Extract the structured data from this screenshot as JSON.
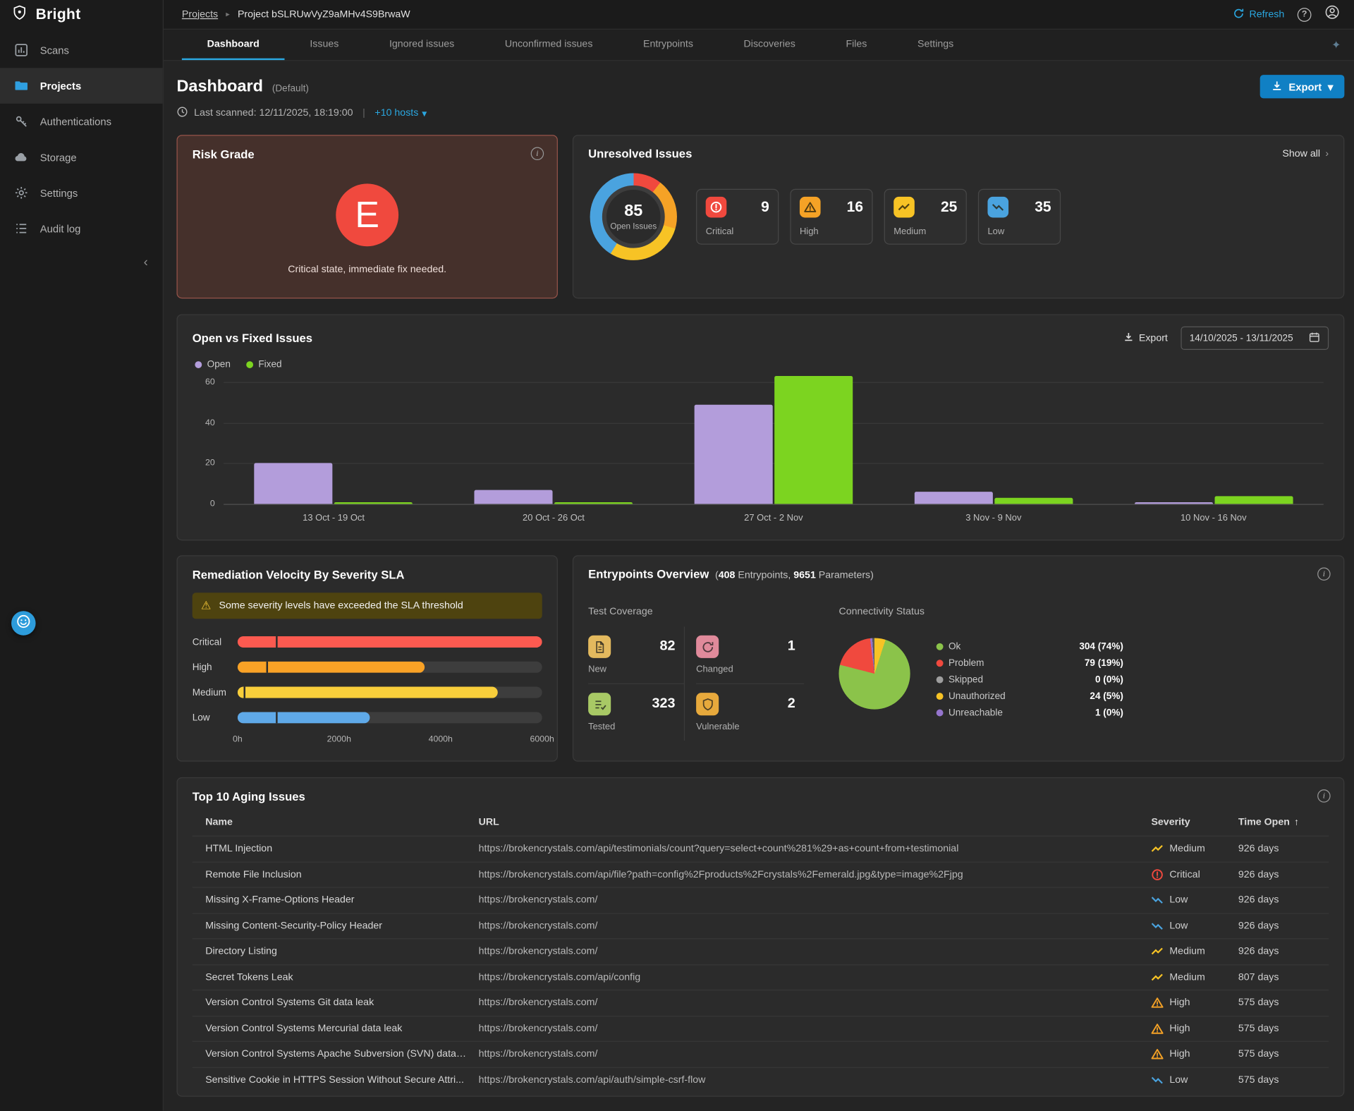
{
  "app": {
    "logo_text": "Bright"
  },
  "sidebar": {
    "items": [
      {
        "label": "Scans"
      },
      {
        "label": "Projects"
      },
      {
        "label": "Authentications"
      },
      {
        "label": "Storage"
      },
      {
        "label": "Settings"
      },
      {
        "label": "Audit log"
      }
    ]
  },
  "topbar": {
    "breadcrumb_root": "Projects",
    "breadcrumb_current": "Project bSLRUwVyZ9aMHv4S9BrwaW",
    "refresh_label": "Refresh"
  },
  "tabs": {
    "items": [
      "Dashboard",
      "Issues",
      "Ignored issues",
      "Unconfirmed issues",
      "Entrypoints",
      "Discoveries",
      "Files",
      "Settings"
    ],
    "active": "Dashboard"
  },
  "page": {
    "title": "Dashboard",
    "title_badge": "(Default)",
    "last_scanned": "Last scanned: 12/11/2025, 18:19:00",
    "separator": "|",
    "hosts_toggle": "+10 hosts",
    "export_label": "Export"
  },
  "severity_colors": {
    "Critical": "#f0493e",
    "High": "#f5a226",
    "Medium": "#f7c325",
    "Low": "#4aa3df"
  },
  "risk_grade": {
    "title": "Risk Grade",
    "grade": "E",
    "description": "Critical state, immediate fix needed."
  },
  "unresolved_issues": {
    "title": "Unresolved Issues",
    "show_all": "Show all",
    "total": "85",
    "total_label": "Open Issues",
    "stats": [
      {
        "label": "Critical",
        "value": "9",
        "color": "#f0493e"
      },
      {
        "label": "High",
        "value": "16",
        "color": "#f5a226"
      },
      {
        "label": "Medium",
        "value": "25",
        "color": "#f7c325"
      },
      {
        "label": "Low",
        "value": "35",
        "color": "#4aa3df"
      }
    ]
  },
  "open_vs_fixed": {
    "title": "Open vs Fixed Issues",
    "export_label": "Export",
    "date_range": "14/10/2025 - 13/11/2025",
    "chart": {
      "type": "bar",
      "categories": [
        "13 Oct - 19 Oct",
        "20 Oct - 26 Oct",
        "27 Oct - 2 Nov",
        "3 Nov - 9 Nov",
        "10 Nov - 16 Nov"
      ],
      "series": [
        {
          "name": "Open",
          "color": "#b39ddb",
          "values": [
            20,
            7,
            49,
            6,
            1
          ]
        },
        {
          "name": "Fixed",
          "color": "#7cd420",
          "values": [
            1,
            1,
            63,
            3,
            4
          ]
        }
      ],
      "y_ticks": [
        0,
        20,
        40,
        60
      ]
    }
  },
  "sla": {
    "title": "Remediation Velocity By Severity SLA",
    "warning": "Some severity levels have exceeded the SLA threshold",
    "axis_ticks": [
      "0h",
      "2000h",
      "4000h",
      "6000h"
    ],
    "axis_max": 6000,
    "rows": [
      {
        "label": "Critical",
        "value": 6000,
        "threshold": 750,
        "color": "#fc5a50"
      },
      {
        "label": "High",
        "value": 3680,
        "threshold": 560,
        "color": "#f9a226"
      },
      {
        "label": "Medium",
        "value": 5120,
        "threshold": 120,
        "color": "#f8ce3b"
      },
      {
        "label": "Low",
        "value": 2600,
        "threshold": 760,
        "color": "#5fa9e8"
      }
    ]
  },
  "entrypoints": {
    "title": "Entrypoints Overview",
    "counts": {
      "open_paren": "(",
      "entrypoints_value": "408",
      "entrypoints_label": "Entrypoints,",
      "params_value": "9651",
      "params_label": "Parameters",
      "close_paren": ")"
    },
    "test_coverage_label": "Test Coverage",
    "coverage": [
      {
        "label": "New",
        "value": "82",
        "badge": "#e3b95e"
      },
      {
        "label": "Changed",
        "value": "1",
        "badge": "#e08a9b"
      },
      {
        "label": "Tested",
        "value": "323",
        "badge": "#a8c965"
      },
      {
        "label": "Vulnerable",
        "value": "2",
        "badge": "#e7a93c"
      }
    ],
    "connectivity_label": "Connectivity Status",
    "connectivity": [
      {
        "label": "Ok",
        "value": "304 (74%)",
        "pct": 74,
        "color": "#8bc34a"
      },
      {
        "label": "Problem",
        "value": "79 (19%)",
        "pct": 19,
        "color": "#f0493e"
      },
      {
        "label": "Skipped",
        "value": "0 (0%)",
        "pct": 0,
        "color": "#9e9e9e"
      },
      {
        "label": "Unauthorized",
        "value": "24 (5%)",
        "pct": 5,
        "color": "#f7c325"
      },
      {
        "label": "Unreachable",
        "value": "1 (0%)",
        "pct": 1,
        "color": "#9575cd"
      }
    ]
  },
  "aging": {
    "title": "Top 10 Aging Issues",
    "columns": [
      "Name",
      "URL",
      "Severity",
      "Time Open"
    ],
    "rows": [
      {
        "name": "HTML Injection",
        "url": "https://brokencrystals.com/api/testimonials/count?query=select+count%281%29+as+count+from+testimonial",
        "severity": "Medium",
        "time": "926 days"
      },
      {
        "name": "Remote File Inclusion",
        "url": "https://brokencrystals.com/api/file?path=config%2Fproducts%2Fcrystals%2Femerald.jpg&type=image%2Fjpg",
        "severity": "Critical",
        "time": "926 days"
      },
      {
        "name": "Missing X-Frame-Options Header",
        "url": "https://brokencrystals.com/",
        "severity": "Low",
        "time": "926 days"
      },
      {
        "name": "Missing Content-Security-Policy Header",
        "url": "https://brokencrystals.com/",
        "severity": "Low",
        "time": "926 days"
      },
      {
        "name": "Directory Listing",
        "url": "https://brokencrystals.com/",
        "severity": "Medium",
        "time": "926 days"
      },
      {
        "name": "Secret Tokens Leak",
        "url": "https://brokencrystals.com/api/config",
        "severity": "Medium",
        "time": "807 days"
      },
      {
        "name": "Version Control Systems Git data leak",
        "url": "https://brokencrystals.com/",
        "severity": "High",
        "time": "575 days"
      },
      {
        "name": "Version Control Systems Mercurial data leak",
        "url": "https://brokencrystals.com/",
        "severity": "High",
        "time": "575 days"
      },
      {
        "name": "Version Control Systems Apache Subversion (SVN) data ...",
        "url": "https://brokencrystals.com/",
        "severity": "High",
        "time": "575 days"
      },
      {
        "name": "Sensitive Cookie in HTTPS Session Without Secure Attri...",
        "url": "https://brokencrystals.com/api/auth/simple-csrf-flow",
        "severity": "Low",
        "time": "575 days"
      }
    ]
  }
}
